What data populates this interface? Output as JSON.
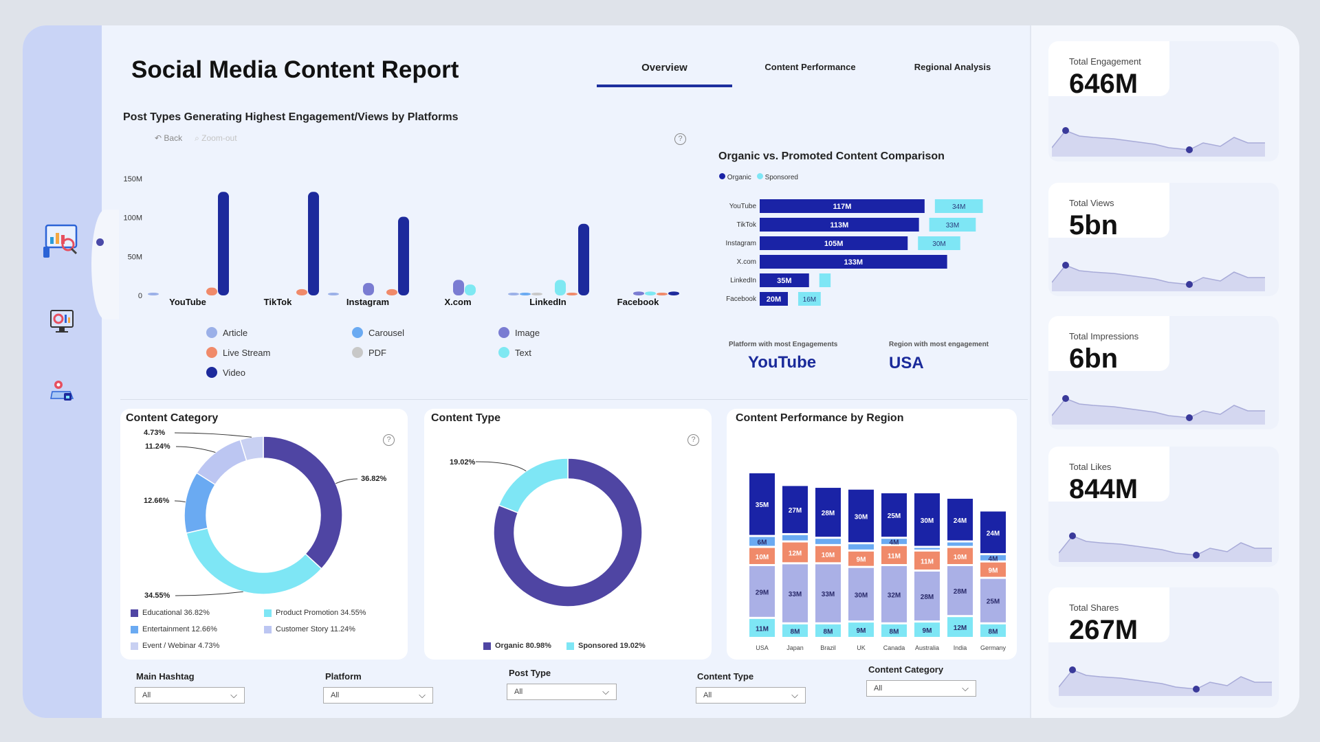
{
  "title": "Social Media Content Report",
  "tabs": [
    "Overview",
    "Content Performance",
    "Regional Analysis"
  ],
  "main_chart": {
    "title": "Post Types Generating Highest Engagement/Views by Platforms",
    "back_label": "Back",
    "zoom_label": "Zoom-out",
    "help": "?"
  },
  "chart_data": [
    {
      "type": "bar",
      "title": "Post Types Generating Highest Engagement/Views by Platforms",
      "categories": [
        "YouTube",
        "TikTok",
        "Instagram",
        "X.com",
        "LinkedIn",
        "Facebook"
      ],
      "ytick_labels": [
        "150M",
        "100M",
        "50M",
        "0"
      ],
      "ylim": [
        0,
        150
      ],
      "series": [
        {
          "name": "Article",
          "color": "#9bb0e8",
          "values": [
            1,
            0,
            1,
            0,
            2,
            0
          ]
        },
        {
          "name": "Live Stream",
          "color": "#f08a6a",
          "values": [
            10,
            8,
            8,
            0,
            2,
            2
          ]
        },
        {
          "name": "Video",
          "color": "#1d2a9c",
          "values": [
            133,
            133,
            101,
            0,
            92,
            5
          ]
        },
        {
          "name": "Carousel",
          "color": "#6aaaf2",
          "values": [
            0,
            0,
            0,
            0,
            2,
            0
          ]
        },
        {
          "name": "PDF",
          "color": "#c8c8c8",
          "values": [
            0,
            0,
            0,
            0,
            1,
            0
          ]
        },
        {
          "name": "Image",
          "color": "#7a7cd2",
          "values": [
            0,
            0,
            16,
            20,
            0,
            5
          ]
        },
        {
          "name": "Text",
          "color": "#7ee8f2",
          "values": [
            0,
            0,
            0,
            14,
            20,
            5
          ]
        }
      ]
    },
    {
      "type": "bar",
      "title": "Organic vs. Promoted Content Comparison",
      "categories": [
        "YouTube",
        "TikTok",
        "Instagram",
        "X.com",
        "LinkedIn",
        "Facebook"
      ],
      "series": [
        {
          "name": "Organic",
          "color": "#1a23a6",
          "values": [
            117,
            113,
            105,
            133,
            35,
            20
          ],
          "labels": [
            "117M",
            "113M",
            "105M",
            "133M",
            "35M",
            "20M"
          ]
        },
        {
          "name": "Sponsored",
          "color": "#7ee6f5",
          "values": [
            34,
            33,
            30,
            0,
            8,
            16
          ],
          "labels": [
            "34M",
            "33M",
            "30M",
            "",
            "",
            "16M"
          ]
        }
      ]
    },
    {
      "type": "pie",
      "title": "Content Category",
      "categories": [
        "Educational",
        "Product Promotion",
        "Entertainment",
        "Customer Story",
        "Event / Webinar"
      ],
      "values": [
        36.82,
        34.55,
        12.66,
        11.24,
        4.73
      ],
      "value_labels": [
        "36.82%",
        "34.55%",
        "12.66%",
        "11.24%",
        "4.73%"
      ],
      "legend_labels": [
        "Educational 36.82%",
        "Product Promotion 34.55%",
        "Entertainment 12.66%",
        "Customer Story 11.24%",
        "Event / Webinar 4.73%"
      ],
      "colors": [
        "#4f45a3",
        "#7ee6f5",
        "#6aaaf2",
        "#bcc6f2",
        "#c8d0f2"
      ]
    },
    {
      "type": "pie",
      "title": "Content Type",
      "categories": [
        "Organic",
        "Sponsored"
      ],
      "values": [
        80.98,
        19.02
      ],
      "value_labels": [
        "80.98%",
        "19.02%"
      ],
      "legend_labels": [
        "Organic 80.98%",
        "Sponsored 19.02%"
      ],
      "colors": [
        "#4f45a3",
        "#7ee6f5"
      ]
    },
    {
      "type": "bar",
      "title": "Content Performance by Region",
      "categories": [
        "USA",
        "Japan",
        "Brazil",
        "UK",
        "Canada",
        "Australia",
        "India",
        "Germany"
      ],
      "stacked": true,
      "series": [
        {
          "name": "Text",
          "color": "#7ee6f5",
          "values": [
            11,
            8,
            8,
            9,
            8,
            9,
            12,
            8
          ],
          "labels": [
            "11M",
            "8M",
            "8M",
            "9M",
            "8M",
            "9M",
            "12M",
            "8M"
          ]
        },
        {
          "name": "Image",
          "color": "#aab0e6",
          "values": [
            29,
            33,
            33,
            30,
            32,
            28,
            28,
            25
          ],
          "labels": [
            "29M",
            "33M",
            "33M",
            "30M",
            "32M",
            "28M",
            "28M",
            "25M"
          ]
        },
        {
          "name": "Live Stream",
          "color": "#f08a6a",
          "values": [
            10,
            12,
            10,
            9,
            11,
            11,
            10,
            9
          ],
          "labels": [
            "10M",
            "12M",
            "10M",
            "9M",
            "11M",
            "11M",
            "10M",
            "9M"
          ]
        },
        {
          "name": "Carousel",
          "color": "#6aaaf2",
          "values": [
            6,
            4,
            4,
            4,
            4,
            2,
            3,
            4
          ],
          "labels": [
            "6M",
            "",
            "",
            "",
            "4M",
            "",
            "",
            "4M"
          ]
        },
        {
          "name": "Video",
          "color": "#1a23a6",
          "values": [
            35,
            27,
            28,
            30,
            25,
            30,
            24,
            24
          ],
          "labels": [
            "35M",
            "27M",
            "28M",
            "30M",
            "25M",
            "30M",
            "24M",
            "24M"
          ]
        }
      ]
    }
  ],
  "organic_chart": {
    "title": "Organic vs. Promoted Content Comparison",
    "legend": [
      "Organic",
      "Sponsored"
    ],
    "platform_label": "Platform with most Engagements",
    "platform_value": "YouTube",
    "region_label": "Region with most engagement",
    "region_value": "USA"
  },
  "category_chart": {
    "title": "Content Category",
    "help": "?"
  },
  "type_chart": {
    "title": "Content Type",
    "help": "?"
  },
  "region_chart": {
    "title": "Content Performance by Region"
  },
  "kpis": [
    {
      "label": "Total Engagement",
      "value": "646M"
    },
    {
      "label": "Total Views",
      "value": "5bn"
    },
    {
      "label": "Total Impressions",
      "value": "6bn"
    },
    {
      "label": "Total Likes",
      "value": "844M"
    },
    {
      "label": "Total Shares",
      "value": "267M"
    }
  ],
  "slicers": [
    {
      "label": "Main Hashtag",
      "value": "All"
    },
    {
      "label": "Platform",
      "value": "All"
    },
    {
      "label": "Post Type",
      "value": "All"
    },
    {
      "label": "Content Type",
      "value": "All"
    },
    {
      "label": "Content Category",
      "value": "All"
    }
  ],
  "nav_icons": [
    "report-icon",
    "dashboard-icon",
    "map-icon"
  ],
  "colors": {
    "primary": "#1a23a6",
    "accent": "#7ee6f5",
    "sidebar": "#c9d4f6"
  }
}
